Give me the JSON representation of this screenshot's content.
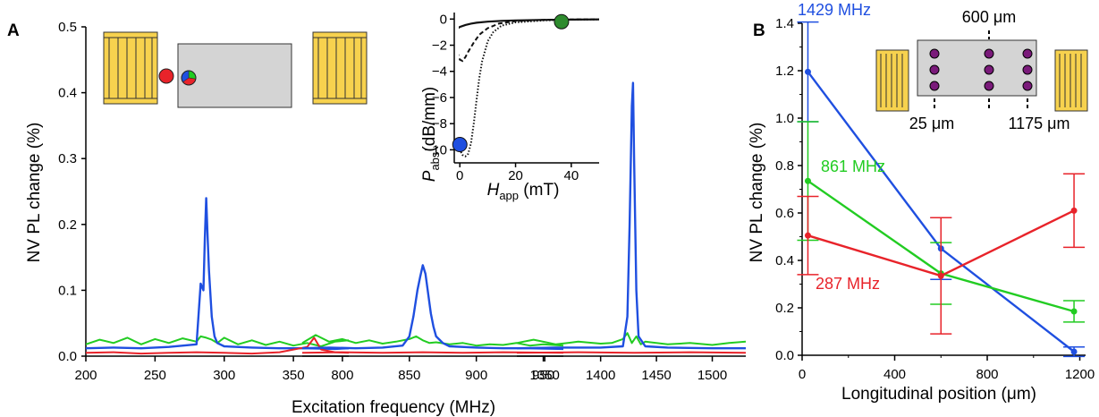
{
  "colors": {
    "red": "#e8232a",
    "green": "#22cc22",
    "blue": "#1f4fe0",
    "gold": "#f7d24e",
    "gray": "#d4d4d4",
    "purple": "#7a1a7a",
    "marker_green": "#2e8b2e"
  },
  "panels": {
    "a": {
      "label": "A"
    },
    "b": {
      "label": "B"
    }
  },
  "chart_data": [
    {
      "type": "line",
      "name": "panel-a",
      "xlabel": "Excitation frequency (MHz)",
      "ylabel": "NV PL change (%)",
      "ylim": [
        0,
        0.5
      ],
      "yticks": [
        "0.0",
        "0.1",
        "0.2",
        "0.3",
        "0.4",
        "0.5"
      ],
      "segments": [
        {
          "xlim": [
            200,
            390
          ],
          "xticks": [
            "200",
            "250",
            "300",
            "350"
          ],
          "series": [
            {
              "color": "green",
              "x": [
                200,
                210,
                220,
                230,
                240,
                250,
                260,
                270,
                280,
                283,
                287,
                291,
                295,
                300,
                310,
                320,
                330,
                340,
                350,
                360,
                370,
                380,
                390
              ],
              "y": [
                0.018,
                0.025,
                0.02,
                0.028,
                0.018,
                0.026,
                0.02,
                0.027,
                0.022,
                0.03,
                0.028,
                0.025,
                0.02,
                0.028,
                0.018,
                0.024,
                0.017,
                0.022,
                0.016,
                0.02,
                0.015,
                0.022,
                0.024
              ]
            },
            {
              "color": "blue",
              "x": [
                200,
                220,
                240,
                260,
                280,
                283,
                285,
                286,
                287,
                288,
                289,
                291,
                293,
                295,
                300,
                320,
                340,
                360,
                380,
                390
              ],
              "y": [
                0.012,
                0.013,
                0.012,
                0.014,
                0.018,
                0.11,
                0.1,
                0.18,
                0.24,
                0.18,
                0.13,
                0.06,
                0.03,
                0.02,
                0.015,
                0.013,
                0.012,
                0.012,
                0.011,
                0.012
              ]
            },
            {
              "color": "red",
              "x": [
                200,
                220,
                240,
                260,
                280,
                300,
                320,
                340,
                360,
                365,
                370,
                380,
                390
              ],
              "y": [
                0.005,
                0.006,
                0.004,
                0.005,
                0.006,
                0.005,
                0.004,
                0.006,
                0.014,
                0.028,
                0.01,
                0.006,
                0.005
              ]
            }
          ]
        },
        {
          "xlim": [
            770,
            965
          ],
          "xticks": [
            "800",
            "850",
            "900",
            "950"
          ],
          "series": [
            {
              "color": "green",
              "x": [
                770,
                780,
                790,
                800,
                810,
                820,
                830,
                840,
                850,
                855,
                860,
                865,
                870,
                880,
                890,
                900,
                910,
                920,
                930,
                940,
                950,
                965
              ],
              "y": [
                0.02,
                0.032,
                0.022,
                0.026,
                0.02,
                0.024,
                0.019,
                0.022,
                0.026,
                0.03,
                0.024,
                0.02,
                0.021,
                0.018,
                0.02,
                0.016,
                0.018,
                0.017,
                0.02,
                0.016,
                0.018,
                0.016
              ]
            },
            {
              "color": "blue",
              "x": [
                770,
                790,
                810,
                830,
                845,
                850,
                853,
                856,
                858,
                860,
                862,
                864,
                866,
                868,
                870,
                875,
                880,
                900,
                920,
                940,
                965
              ],
              "y": [
                0.012,
                0.013,
                0.012,
                0.013,
                0.016,
                0.03,
                0.06,
                0.1,
                0.12,
                0.138,
                0.125,
                0.095,
                0.065,
                0.045,
                0.03,
                0.02,
                0.015,
                0.013,
                0.012,
                0.012,
                0.011
              ]
            },
            {
              "color": "red",
              "x": [
                770,
                800,
                830,
                860,
                890,
                920,
                965
              ],
              "y": [
                0.005,
                0.006,
                0.005,
                0.006,
                0.005,
                0.006,
                0.005
              ]
            }
          ]
        },
        {
          "xlim": [
            1325,
            1530
          ],
          "xticks": [
            "1350",
            "1400",
            "1450",
            "1500"
          ],
          "series": [
            {
              "color": "green",
              "x": [
                1325,
                1340,
                1360,
                1380,
                1400,
                1410,
                1420,
                1424,
                1428,
                1432,
                1436,
                1440,
                1460,
                1480,
                1500,
                1515,
                1530
              ],
              "y": [
                0.02,
                0.025,
                0.018,
                0.022,
                0.019,
                0.02,
                0.026,
                0.035,
                0.02,
                0.03,
                0.018,
                0.022,
                0.018,
                0.02,
                0.017,
                0.02,
                0.022
              ]
            },
            {
              "color": "blue",
              "x": [
                1325,
                1360,
                1400,
                1420,
                1424,
                1426,
                1428,
                1429,
                1430,
                1432,
                1434,
                1440,
                1460,
                1500,
                1530
              ],
              "y": [
                0.012,
                0.013,
                0.013,
                0.015,
                0.06,
                0.2,
                0.38,
                0.415,
                0.3,
                0.1,
                0.03,
                0.015,
                0.013,
                0.012,
                0.012
              ]
            },
            {
              "color": "red",
              "x": [
                1325,
                1380,
                1430,
                1480,
                1530
              ],
              "y": [
                0.005,
                0.006,
                0.005,
                0.006,
                0.005
              ]
            }
          ]
        }
      ]
    },
    {
      "type": "line",
      "name": "panel-a-inset",
      "xlabel_main": "H",
      "xlabel_sub": "app",
      "xlabel_unit": " (mT)",
      "ylabel_main": "P",
      "ylabel_sub": "abs",
      "ylabel_unit": "(dB/mm)",
      "xlim": [
        -2,
        50
      ],
      "ylim": [
        -11,
        0.5
      ],
      "xticks": [
        "0",
        "20",
        "40"
      ],
      "yticks": [
        "0",
        "−2",
        "−4",
        "−6",
        "−8",
        "−10"
      ],
      "series": [
        {
          "style": "solid",
          "x": [
            -2,
            0,
            2,
            4,
            6,
            10,
            15,
            20,
            30,
            40,
            50
          ],
          "y": [
            -0.9,
            -0.6,
            -0.45,
            -0.35,
            -0.28,
            -0.2,
            -0.14,
            -0.1,
            -0.06,
            -0.04,
            -0.03
          ]
        },
        {
          "style": "dashed",
          "x": [
            -1,
            0,
            1,
            2,
            3,
            5,
            7,
            10,
            14,
            20,
            30,
            40,
            50
          ],
          "y": [
            -2.5,
            -3.1,
            -3.2,
            -2.9,
            -2.5,
            -1.8,
            -1.2,
            -0.7,
            -0.35,
            -0.15,
            -0.06,
            -0.03,
            -0.02
          ]
        },
        {
          "style": "dotted",
          "x": [
            -1,
            0,
            1,
            2,
            3,
            4,
            5,
            6,
            7,
            8,
            10,
            12,
            15,
            20,
            30,
            40,
            50
          ],
          "y": [
            -9.0,
            -10.0,
            -10.4,
            -10.5,
            -10.3,
            -9.5,
            -8.0,
            -6.2,
            -4.5,
            -3.2,
            -1.7,
            -1.0,
            -0.5,
            -0.25,
            -0.1,
            -0.05,
            -0.03
          ]
        }
      ],
      "markers": [
        {
          "color": "blue",
          "x": 0,
          "y": -9.6
        },
        {
          "color": "marker_green",
          "x": 36.5,
          "y": -0.2
        }
      ]
    },
    {
      "type": "line",
      "name": "panel-b",
      "xlabel": "Longitudinal position (μm)",
      "ylabel": "NV PL change (%)",
      "xlim": [
        0,
        1225
      ],
      "ylim": [
        0,
        1.4
      ],
      "xticks": [
        "0",
        "400",
        "800",
        "1200"
      ],
      "yticks": [
        "0.0",
        "0.2",
        "0.4",
        "0.6",
        "0.8",
        "1.0",
        "1.2",
        "1.4"
      ],
      "series": [
        {
          "name": "1429 MHz",
          "color": "blue",
          "x": [
            25,
            600,
            1175
          ],
          "y": [
            1.195,
            0.45,
            0.015
          ],
          "err": [
            0.21,
            0.13,
            0.02
          ]
        },
        {
          "name": "861 MHz",
          "color": "green",
          "x": [
            25,
            600,
            1175
          ],
          "y": [
            0.735,
            0.345,
            0.185
          ],
          "err": [
            0.25,
            0.13,
            0.045
          ]
        },
        {
          "name": "287 MHz",
          "color": "red",
          "x": [
            25,
            600,
            1175
          ],
          "y": [
            0.505,
            0.335,
            0.61
          ],
          "err": [
            0.165,
            0.245,
            0.155
          ]
        }
      ]
    }
  ],
  "inset_b": {
    "top_label": "600 μm",
    "left_label": "25 μm",
    "right_label": "1175 μm"
  }
}
